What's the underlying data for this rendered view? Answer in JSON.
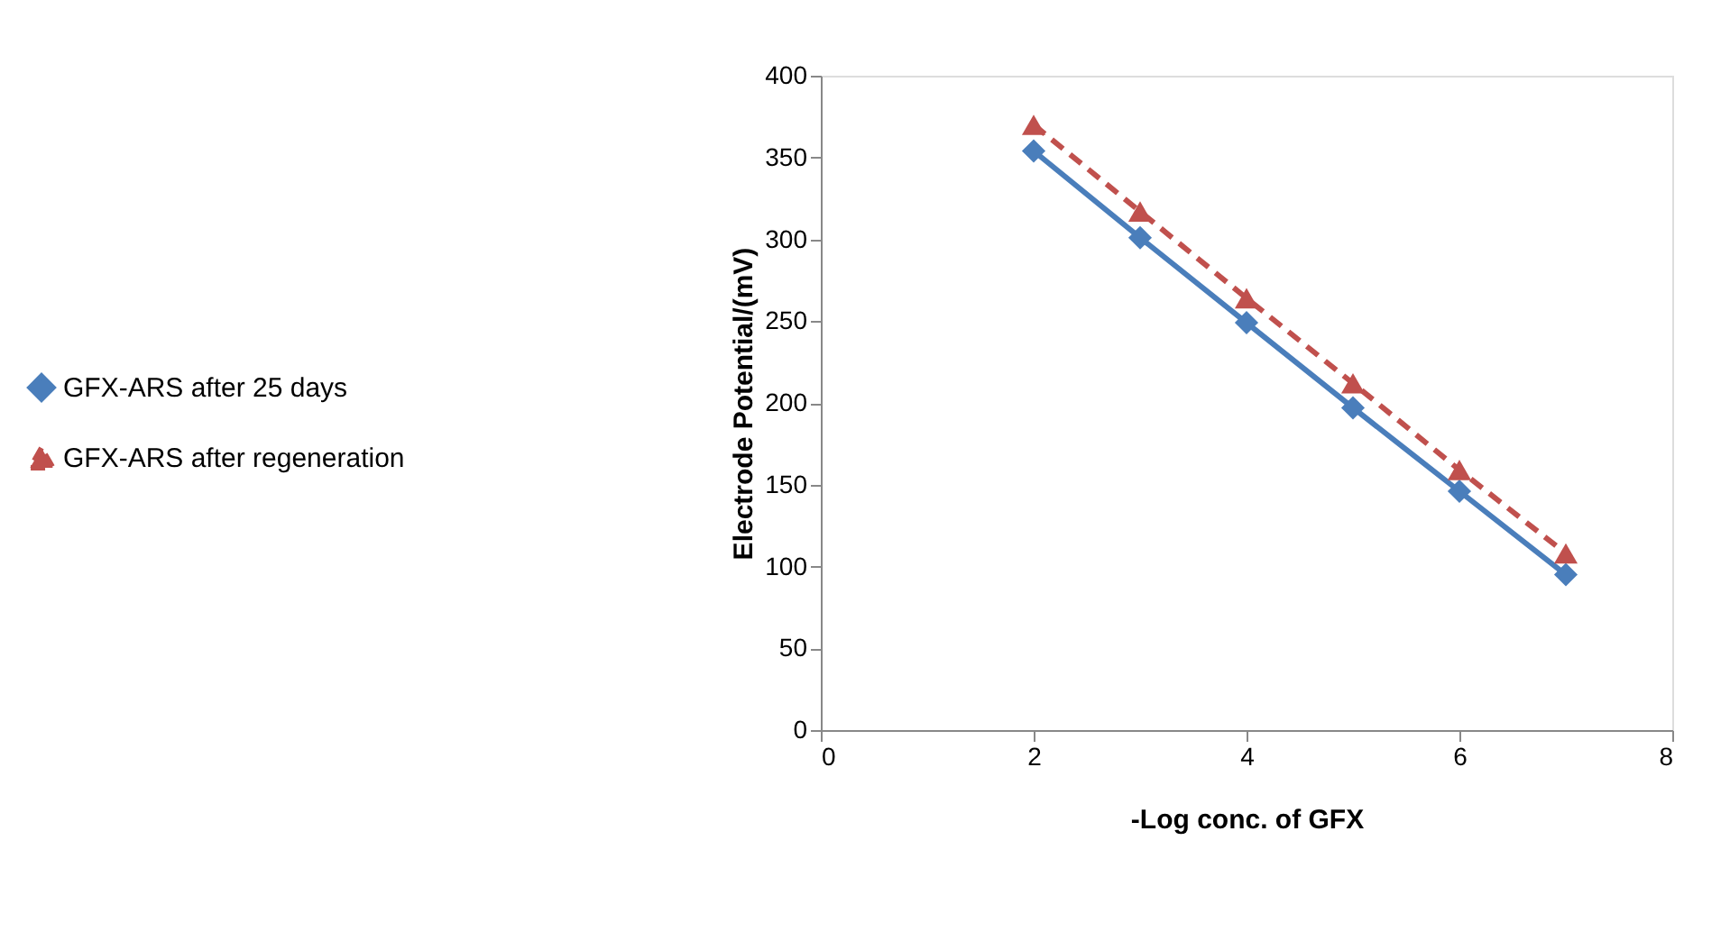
{
  "chart_data": {
    "type": "line",
    "xlabel": "-Log conc. of GFX",
    "ylabel": "Electrode Potential/(mV)",
    "x": [
      2,
      3,
      4,
      5,
      6,
      7
    ],
    "series": [
      {
        "name": "GFX-ARS after 25 days",
        "color": "#4a7ebb",
        "marker": "diamond",
        "line_style": "solid",
        "values": [
          354,
          301,
          249,
          197,
          146,
          95
        ]
      },
      {
        "name": "GFX-ARS after regeneration",
        "color": "#c0504d",
        "marker": "triangle",
        "line_style": "dashed",
        "values": [
          370,
          317,
          264,
          212,
          159,
          108
        ]
      }
    ],
    "xlim": [
      0,
      8
    ],
    "xticks": [
      0,
      2,
      4,
      6,
      8
    ],
    "ylim": [
      0,
      400
    ],
    "yticks": [
      0,
      50,
      100,
      150,
      200,
      250,
      300,
      350,
      400
    ],
    "grid": false,
    "legend": "left"
  }
}
